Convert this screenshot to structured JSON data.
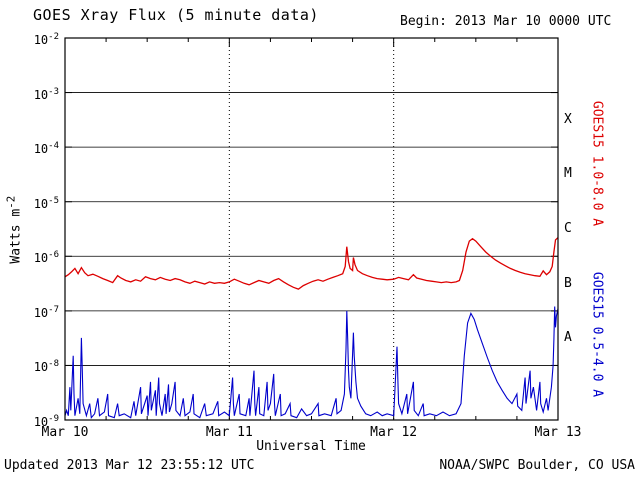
{
  "header": {
    "title": "GOES Xray Flux (5 minute data)",
    "begin": "Begin: 2013 Mar 10 0000 UTC"
  },
  "footer": {
    "updated": "Updated 2013 Mar 12 23:55:12 UTC",
    "source": "NOAA/SWPC Boulder, CO USA"
  },
  "axes": {
    "ylabel_base": "Watts m",
    "ylabel_exp": "-2",
    "xlabel": "Universal Time"
  },
  "right_labels": {
    "long_channel": "GOES15 1.0-8.0 A",
    "short_channel": "GOES15 0.5-4.0 A"
  },
  "chart_data": {
    "type": "line",
    "title": "GOES Xray Flux (5 minute data)",
    "xlabel": "Universal Time",
    "ylabel": "Watts m^-2",
    "x_range_days": [
      0,
      3
    ],
    "x_tick_days": [
      0,
      1,
      2,
      3
    ],
    "x_ticks": [
      "Mar 10",
      "Mar 11",
      "Mar 12",
      "Mar 13"
    ],
    "y_log_range": [
      -9,
      -2
    ],
    "y_tick_exponents": [
      -2,
      -3,
      -4,
      -5,
      -6,
      -7,
      -8,
      -9
    ],
    "grid": {
      "horizontal": "solid",
      "vertical": "dotted-at-day-boundaries",
      "vertical_days": [
        1,
        2
      ]
    },
    "legend_position": "right",
    "flux_classes": [
      {
        "label": "X",
        "center_exponent": -3.5
      },
      {
        "label": "M",
        "center_exponent": -4.5
      },
      {
        "label": "C",
        "center_exponent": -5.5
      },
      {
        "label": "B",
        "center_exponent": -6.5
      },
      {
        "label": "A",
        "center_exponent": -7.5
      }
    ],
    "series": [
      {
        "name": "GOES15 1.0-8.0 A",
        "color": "#dd0000",
        "points": [
          [
            0.0,
            4.2e-07
          ],
          [
            0.02,
            4.6e-07
          ],
          [
            0.04,
            5.2e-07
          ],
          [
            0.06,
            6e-07
          ],
          [
            0.08,
            4.8e-07
          ],
          [
            0.1,
            6.2e-07
          ],
          [
            0.12,
            5e-07
          ],
          [
            0.14,
            4.4e-07
          ],
          [
            0.17,
            4.7e-07
          ],
          [
            0.2,
            4.3e-07
          ],
          [
            0.23,
            3.9e-07
          ],
          [
            0.26,
            3.6e-07
          ],
          [
            0.29,
            3.3e-07
          ],
          [
            0.32,
            4.4e-07
          ],
          [
            0.34,
            4e-07
          ],
          [
            0.37,
            3.6e-07
          ],
          [
            0.4,
            3.4e-07
          ],
          [
            0.43,
            3.7e-07
          ],
          [
            0.46,
            3.5e-07
          ],
          [
            0.49,
            4.2e-07
          ],
          [
            0.52,
            3.9e-07
          ],
          [
            0.55,
            3.7e-07
          ],
          [
            0.58,
            4.1e-07
          ],
          [
            0.61,
            3.8e-07
          ],
          [
            0.64,
            3.6e-07
          ],
          [
            0.67,
            3.9e-07
          ],
          [
            0.7,
            3.7e-07
          ],
          [
            0.73,
            3.4e-07
          ],
          [
            0.76,
            3.2e-07
          ],
          [
            0.79,
            3.5e-07
          ],
          [
            0.82,
            3.3e-07
          ],
          [
            0.85,
            3.1e-07
          ],
          [
            0.88,
            3.4e-07
          ],
          [
            0.91,
            3.2e-07
          ],
          [
            0.94,
            3.3e-07
          ],
          [
            0.97,
            3.2e-07
          ],
          [
            1.0,
            3.4e-07
          ],
          [
            1.03,
            3.8e-07
          ],
          [
            1.06,
            3.5e-07
          ],
          [
            1.09,
            3.2e-07
          ],
          [
            1.12,
            3e-07
          ],
          [
            1.15,
            3.3e-07
          ],
          [
            1.18,
            3.6e-07
          ],
          [
            1.21,
            3.4e-07
          ],
          [
            1.24,
            3.2e-07
          ],
          [
            1.27,
            3.6e-07
          ],
          [
            1.3,
            3.9e-07
          ],
          [
            1.33,
            3.4e-07
          ],
          [
            1.36,
            3e-07
          ],
          [
            1.39,
            2.7e-07
          ],
          [
            1.42,
            2.5e-07
          ],
          [
            1.45,
            2.9e-07
          ],
          [
            1.48,
            3.2e-07
          ],
          [
            1.51,
            3.5e-07
          ],
          [
            1.54,
            3.7e-07
          ],
          [
            1.57,
            3.5e-07
          ],
          [
            1.6,
            3.8e-07
          ],
          [
            1.63,
            4.1e-07
          ],
          [
            1.66,
            4.4e-07
          ],
          [
            1.69,
            4.8e-07
          ],
          [
            1.705,
            6.5e-07
          ],
          [
            1.715,
            1.5e-06
          ],
          [
            1.725,
            8e-07
          ],
          [
            1.735,
            6e-07
          ],
          [
            1.75,
            5.5e-07
          ],
          [
            1.755,
            9.5e-07
          ],
          [
            1.765,
            7e-07
          ],
          [
            1.78,
            5.5e-07
          ],
          [
            1.81,
            4.8e-07
          ],
          [
            1.84,
            4.4e-07
          ],
          [
            1.87,
            4.1e-07
          ],
          [
            1.9,
            3.9e-07
          ],
          [
            1.93,
            3.8e-07
          ],
          [
            1.96,
            3.7e-07
          ],
          [
            2.0,
            3.8e-07
          ],
          [
            2.03,
            4.1e-07
          ],
          [
            2.06,
            3.9e-07
          ],
          [
            2.09,
            3.7e-07
          ],
          [
            2.12,
            4.6e-07
          ],
          [
            2.14,
            4e-07
          ],
          [
            2.17,
            3.8e-07
          ],
          [
            2.2,
            3.6e-07
          ],
          [
            2.23,
            3.5e-07
          ],
          [
            2.26,
            3.4e-07
          ],
          [
            2.29,
            3.3e-07
          ],
          [
            2.32,
            3.4e-07
          ],
          [
            2.35,
            3.3e-07
          ],
          [
            2.38,
            3.4e-07
          ],
          [
            2.4,
            3.6e-07
          ],
          [
            2.42,
            5.5e-07
          ],
          [
            2.44,
            1.2e-06
          ],
          [
            2.46,
            1.9e-06
          ],
          [
            2.48,
            2.1e-06
          ],
          [
            2.5,
            1.9e-06
          ],
          [
            2.53,
            1.5e-06
          ],
          [
            2.56,
            1.2e-06
          ],
          [
            2.59,
            1e-06
          ],
          [
            2.62,
            8.5e-07
          ],
          [
            2.65,
            7.5e-07
          ],
          [
            2.68,
            6.7e-07
          ],
          [
            2.71,
            6e-07
          ],
          [
            2.74,
            5.5e-07
          ],
          [
            2.77,
            5.1e-07
          ],
          [
            2.8,
            4.8e-07
          ],
          [
            2.83,
            4.6e-07
          ],
          [
            2.86,
            4.4e-07
          ],
          [
            2.89,
            4.3e-07
          ],
          [
            2.91,
            5.4e-07
          ],
          [
            2.93,
            4.6e-07
          ],
          [
            2.95,
            5.2e-07
          ],
          [
            2.965,
            6.5e-07
          ],
          [
            2.975,
            1.2e-06
          ],
          [
            2.985,
            2e-06
          ],
          [
            3.0,
            2.2e-06
          ]
        ]
      },
      {
        "name": "GOES15 0.5-4.0 A",
        "color": "#0000cc",
        "points": [
          [
            0.0,
            1.2e-09
          ],
          [
            0.01,
            1.5e-09
          ],
          [
            0.02,
            1.2e-09
          ],
          [
            0.03,
            4e-09
          ],
          [
            0.035,
            1.5e-09
          ],
          [
            0.05,
            1.5e-08
          ],
          [
            0.055,
            3e-09
          ],
          [
            0.06,
            1.2e-09
          ],
          [
            0.08,
            2.5e-09
          ],
          [
            0.09,
            1.3e-09
          ],
          [
            0.1,
            3.2e-08
          ],
          [
            0.105,
            8e-09
          ],
          [
            0.11,
            2e-09
          ],
          [
            0.13,
            1.2e-09
          ],
          [
            0.15,
            2e-09
          ],
          [
            0.16,
            1.1e-09
          ],
          [
            0.18,
            1.3e-09
          ],
          [
            0.2,
            2.5e-09
          ],
          [
            0.21,
            1.2e-09
          ],
          [
            0.24,
            1.4e-09
          ],
          [
            0.26,
            3e-09
          ],
          [
            0.265,
            1.2e-09
          ],
          [
            0.3,
            1.1e-09
          ],
          [
            0.32,
            2e-09
          ],
          [
            0.33,
            1.2e-09
          ],
          [
            0.36,
            1.3e-09
          ],
          [
            0.4,
            1.1e-09
          ],
          [
            0.42,
            2.2e-09
          ],
          [
            0.43,
            1.2e-09
          ],
          [
            0.46,
            4e-09
          ],
          [
            0.465,
            1.3e-09
          ],
          [
            0.5,
            2.8e-09
          ],
          [
            0.505,
            1.2e-09
          ],
          [
            0.52,
            5e-09
          ],
          [
            0.525,
            1.5e-09
          ],
          [
            0.55,
            3.5e-09
          ],
          [
            0.555,
            1.2e-09
          ],
          [
            0.57,
            6e-09
          ],
          [
            0.575,
            2e-09
          ],
          [
            0.59,
            1.2e-09
          ],
          [
            0.61,
            3e-09
          ],
          [
            0.615,
            1.3e-09
          ],
          [
            0.63,
            4.5e-09
          ],
          [
            0.635,
            1.4e-09
          ],
          [
            0.65,
            2e-09
          ],
          [
            0.67,
            5e-09
          ],
          [
            0.675,
            1.5e-09
          ],
          [
            0.7,
            1.2e-09
          ],
          [
            0.72,
            2.5e-09
          ],
          [
            0.73,
            1.2e-09
          ],
          [
            0.76,
            1.4e-09
          ],
          [
            0.78,
            3e-09
          ],
          [
            0.785,
            1.3e-09
          ],
          [
            0.82,
            1.1e-09
          ],
          [
            0.85,
            2e-09
          ],
          [
            0.86,
            1.2e-09
          ],
          [
            0.9,
            1.3e-09
          ],
          [
            0.93,
            2.2e-09
          ],
          [
            0.935,
            1.2e-09
          ],
          [
            0.97,
            1.4e-09
          ],
          [
            1.0,
            1.2e-09
          ],
          [
            1.02,
            6e-09
          ],
          [
            1.025,
            2e-09
          ],
          [
            1.03,
            1.2e-09
          ],
          [
            1.06,
            3e-09
          ],
          [
            1.065,
            1.3e-09
          ],
          [
            1.1,
            1.2e-09
          ],
          [
            1.12,
            2.5e-09
          ],
          [
            1.125,
            1.2e-09
          ],
          [
            1.15,
            8e-09
          ],
          [
            1.155,
            2e-09
          ],
          [
            1.16,
            1.2e-09
          ],
          [
            1.18,
            4e-09
          ],
          [
            1.185,
            1.3e-09
          ],
          [
            1.21,
            1.2e-09
          ],
          [
            1.23,
            5e-09
          ],
          [
            1.235,
            1.5e-09
          ],
          [
            1.25,
            2e-09
          ],
          [
            1.27,
            7e-09
          ],
          [
            1.275,
            2e-09
          ],
          [
            1.28,
            1.2e-09
          ],
          [
            1.31,
            3e-09
          ],
          [
            1.315,
            1.2e-09
          ],
          [
            1.34,
            1.3e-09
          ],
          [
            1.37,
            2e-09
          ],
          [
            1.375,
            1.2e-09
          ],
          [
            1.41,
            1.1e-09
          ],
          [
            1.44,
            1.6e-09
          ],
          [
            1.47,
            1.2e-09
          ],
          [
            1.5,
            1.3e-09
          ],
          [
            1.54,
            2e-09
          ],
          [
            1.545,
            1.2e-09
          ],
          [
            1.58,
            1.3e-09
          ],
          [
            1.62,
            1.2e-09
          ],
          [
            1.65,
            2.5e-09
          ],
          [
            1.655,
            1.3e-09
          ],
          [
            1.68,
            1.5e-09
          ],
          [
            1.7,
            3e-09
          ],
          [
            1.71,
            2e-08
          ],
          [
            1.715,
            1e-07
          ],
          [
            1.72,
            3e-08
          ],
          [
            1.725,
            8e-09
          ],
          [
            1.73,
            4e-09
          ],
          [
            1.74,
            2.5e-09
          ],
          [
            1.755,
            4e-08
          ],
          [
            1.76,
            1.5e-08
          ],
          [
            1.77,
            5e-09
          ],
          [
            1.78,
            2.5e-09
          ],
          [
            1.8,
            1.8e-09
          ],
          [
            1.83,
            1.3e-09
          ],
          [
            1.86,
            1.2e-09
          ],
          [
            1.9,
            1.4e-09
          ],
          [
            1.93,
            1.2e-09
          ],
          [
            1.96,
            1.3e-09
          ],
          [
            2.0,
            1.2e-09
          ],
          [
            2.02,
            2.2e-08
          ],
          [
            2.025,
            6e-09
          ],
          [
            2.03,
            2e-09
          ],
          [
            2.05,
            1.3e-09
          ],
          [
            2.08,
            3e-09
          ],
          [
            2.085,
            1.3e-09
          ],
          [
            2.12,
            5e-09
          ],
          [
            2.125,
            1.5e-09
          ],
          [
            2.15,
            1.2e-09
          ],
          [
            2.18,
            2e-09
          ],
          [
            2.185,
            1.2e-09
          ],
          [
            2.22,
            1.3e-09
          ],
          [
            2.26,
            1.2e-09
          ],
          [
            2.3,
            1.4e-09
          ],
          [
            2.34,
            1.2e-09
          ],
          [
            2.38,
            1.3e-09
          ],
          [
            2.41,
            2e-09
          ],
          [
            2.43,
            1.5e-08
          ],
          [
            2.45,
            6e-08
          ],
          [
            2.47,
            9e-08
          ],
          [
            2.49,
            7e-08
          ],
          [
            2.51,
            4.5e-08
          ],
          [
            2.54,
            2.5e-08
          ],
          [
            2.57,
            1.4e-08
          ],
          [
            2.6,
            8e-09
          ],
          [
            2.63,
            5e-09
          ],
          [
            2.66,
            3.5e-09
          ],
          [
            2.69,
            2.5e-09
          ],
          [
            2.72,
            2e-09
          ],
          [
            2.75,
            3e-09
          ],
          [
            2.755,
            1.8e-09
          ],
          [
            2.78,
            1.5e-09
          ],
          [
            2.8,
            6e-09
          ],
          [
            2.805,
            2e-09
          ],
          [
            2.83,
            8e-09
          ],
          [
            2.835,
            2.5e-09
          ],
          [
            2.85,
            4e-09
          ],
          [
            2.87,
            1.5e-09
          ],
          [
            2.89,
            5e-09
          ],
          [
            2.895,
            2e-09
          ],
          [
            2.91,
            1.4e-09
          ],
          [
            2.93,
            2.5e-09
          ],
          [
            2.94,
            1.5e-09
          ],
          [
            2.96,
            4e-09
          ],
          [
            2.97,
            1e-08
          ],
          [
            2.975,
            3e-08
          ],
          [
            2.98,
            1.2e-07
          ],
          [
            2.985,
            5e-08
          ],
          [
            2.99,
            8e-08
          ],
          [
            3.0,
            1.1e-07
          ]
        ]
      }
    ]
  }
}
